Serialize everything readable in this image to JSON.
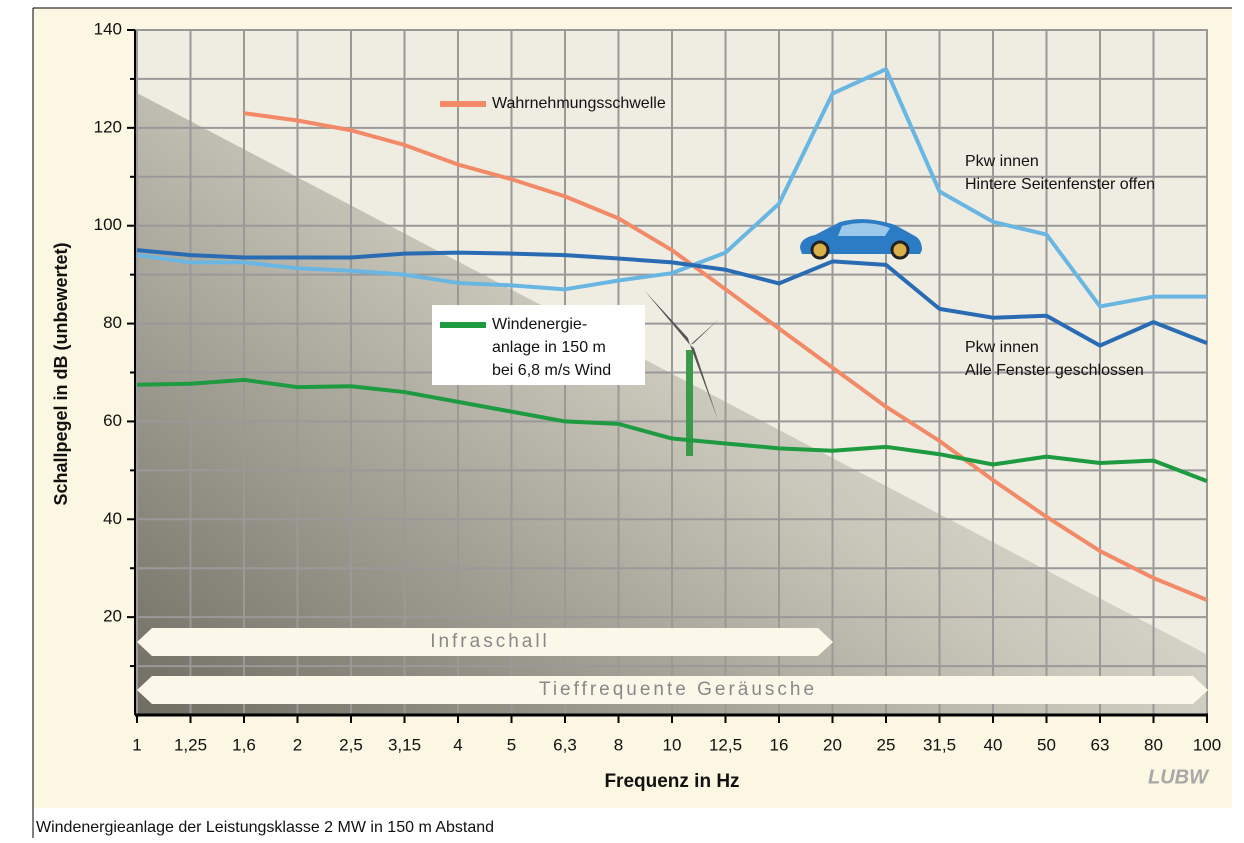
{
  "chart_data": {
    "type": "line",
    "categories": [
      "1",
      "1,25",
      "1,6",
      "2",
      "2,5",
      "3,15",
      "4",
      "5",
      "6,3",
      "8",
      "10",
      "12,5",
      "16",
      "20",
      "25",
      "31,5",
      "40",
      "50",
      "63",
      "80",
      "100"
    ],
    "series": [
      {
        "name": "Wahrnehmungsschwelle",
        "color": "#f28a68",
        "values": [
          null,
          null,
          123,
          121.5,
          119.5,
          116.5,
          112.5,
          109.5,
          106,
          101.5,
          95,
          87,
          79,
          71,
          63,
          56,
          48,
          40.5,
          33.5,
          28,
          23.5
        ]
      },
      {
        "name": "Pkw innen\nHintere Seitenfenster offen",
        "color": "#6ab6e3",
        "values": [
          94,
          92.5,
          92.5,
          91.3,
          90.8,
          90,
          88.3,
          87.8,
          87,
          88.8,
          90.3,
          94.5,
          104.5,
          127,
          132,
          107,
          100.8,
          98.2,
          83.5,
          85.5,
          85.5
        ]
      },
      {
        "name": "Pkw innen\nAlle Fenster geschlossen",
        "color": "#2a6cb4",
        "values": [
          95,
          94,
          93.5,
          93.5,
          93.5,
          94.3,
          94.5,
          94.3,
          94,
          93.3,
          92.5,
          91,
          88.2,
          92.7,
          92,
          83,
          81.2,
          81.6,
          75.5,
          80.3,
          76
        ]
      },
      {
        "name": "Windenergie-\nanlage in 150 m\nbei 6,8 m/s Wind",
        "color": "#1e9a40",
        "values": [
          67.5,
          67.7,
          68.5,
          67,
          67.2,
          66,
          64,
          62,
          60,
          59.5,
          56.5,
          55.5,
          54.5,
          54,
          54.8,
          53.3,
          51.2,
          52.8,
          51.5,
          52,
          47.8
        ]
      }
    ],
    "ylim": [
      0,
      140
    ],
    "yticks": [
      20,
      40,
      60,
      80,
      100,
      120,
      140
    ],
    "y_minor_ticks": [
      10,
      30,
      50,
      70,
      90,
      110,
      130
    ],
    "grid": true,
    "y_label": "Schallpegel in dB (unbewertet)",
    "x_label": "Frequenz in Hz",
    "bands": [
      "Infraschall",
      "Tieffrequente Geräusche"
    ],
    "logo": "LUBW",
    "caption": "Windenergieanlage der Leistungsklasse 2 MW in 150 m Abstand"
  }
}
